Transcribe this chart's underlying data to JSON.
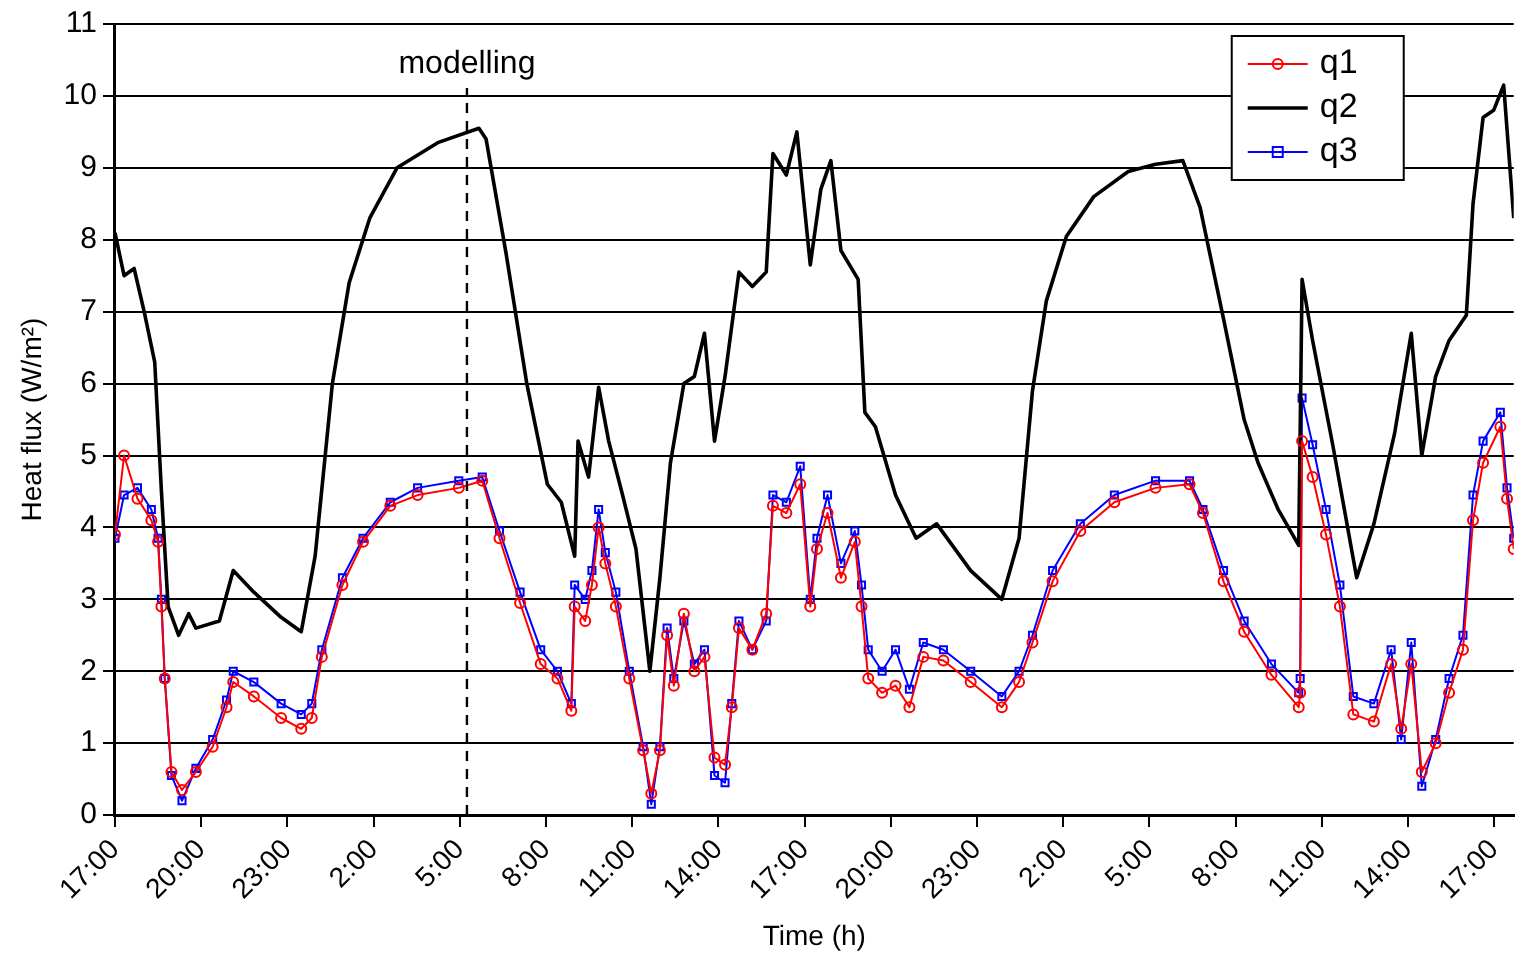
{
  "chart_data": {
    "type": "line",
    "xlabel": "Time (h)",
    "ylabel": "Heat flux (W/m²)",
    "xlim": [
      "2000-01-01T17:00",
      "2000-01-03T17:41"
    ],
    "xticks": [
      {
        "value": "2000-01-01T17:00",
        "label": "17:00"
      },
      {
        "value": "2000-01-01T20:00",
        "label": "20:00"
      },
      {
        "value": "2000-01-01T23:00",
        "label": "23:00"
      },
      {
        "value": "2000-01-02T02:00",
        "label": "2:00"
      },
      {
        "value": "2000-01-02T05:00",
        "label": "5:00"
      },
      {
        "value": "2000-01-02T08:00",
        "label": "8:00"
      },
      {
        "value": "2000-01-02T11:00",
        "label": "11:00"
      },
      {
        "value": "2000-01-02T14:00",
        "label": "14:00"
      },
      {
        "value": "2000-01-02T17:00",
        "label": "17:00"
      },
      {
        "value": "2000-01-02T20:00",
        "label": "20:00"
      },
      {
        "value": "2000-01-02T23:00",
        "label": "23:00"
      },
      {
        "value": "2000-01-03T02:00",
        "label": "2:00"
      },
      {
        "value": "2000-01-03T05:00",
        "label": "5:00"
      },
      {
        "value": "2000-01-03T08:00",
        "label": "8:00"
      },
      {
        "value": "2000-01-03T11:00",
        "label": "11:00"
      },
      {
        "value": "2000-01-03T14:00",
        "label": "14:00"
      },
      {
        "value": "2000-01-03T17:00",
        "label": "17:00"
      }
    ],
    "ylim": [
      0,
      11
    ],
    "yticks": [
      0,
      1,
      2,
      3,
      4,
      5,
      6,
      7,
      8,
      9,
      10,
      11
    ],
    "grid": "y",
    "legend": "top right",
    "ref_lines": [
      {
        "axis": "x",
        "value": "2000-01-02T05:15",
        "label": "modelling",
        "color": "#000000",
        "line_style": "dashed"
      }
    ],
    "series": [
      {
        "name": "q1",
        "color": "#ff0000",
        "marker": "circle",
        "x": [
          "2000-01-01T17:00",
          "2000-01-01T17:19",
          "2000-01-01T17:47",
          "2000-01-01T18:16",
          "2000-01-01T18:30",
          "2000-01-01T18:37",
          "2000-01-01T18:44",
          "2000-01-01T18:58",
          "2000-01-01T19:20",
          "2000-01-01T19:49",
          "2000-01-01T20:24",
          "2000-01-01T20:53",
          "2000-01-01T21:07",
          "2000-01-01T21:50",
          "2000-01-01T22:47",
          "2000-01-01T23:29",
          "2000-01-01T23:51",
          "2000-01-02T00:12",
          "2000-01-02T00:55",
          "2000-01-02T01:38",
          "2000-01-02T02:35",
          "2000-01-02T03:32",
          "2000-01-02T04:58",
          "2000-01-02T05:47",
          "2000-01-02T06:23",
          "2000-01-02T07:06",
          "2000-01-02T07:49",
          "2000-01-02T08:24",
          "2000-01-02T08:53",
          "2000-01-02T09:00",
          "2000-01-02T09:22",
          "2000-01-02T09:36",
          "2000-01-02T09:50",
          "2000-01-02T10:04",
          "2000-01-02T10:26",
          "2000-01-02T10:54",
          "2000-01-02T11:23",
          "2000-01-02T11:40",
          "2000-01-02T11:58",
          "2000-01-02T12:13",
          "2000-01-02T12:27",
          "2000-01-02T12:48",
          "2000-01-02T13:10",
          "2000-01-02T13:31",
          "2000-01-02T13:52",
          "2000-01-02T14:14",
          "2000-01-02T14:28",
          "2000-01-02T14:43",
          "2000-01-02T15:11",
          "2000-01-02T15:40",
          "2000-01-02T15:54",
          "2000-01-02T16:22",
          "2000-01-02T16:51",
          "2000-01-02T17:12",
          "2000-01-02T17:26",
          "2000-01-02T17:48",
          "2000-01-02T18:16",
          "2000-01-02T18:45",
          "2000-01-02T18:59",
          "2000-01-02T19:13",
          "2000-01-02T19:42",
          "2000-01-02T20:10",
          "2000-01-02T20:39",
          "2000-01-02T21:08",
          "2000-01-02T21:50",
          "2000-01-02T22:47",
          "2000-01-02T23:52",
          "2000-01-03T00:28",
          "2000-01-03T00:56",
          "2000-01-03T01:38",
          "2000-01-03T02:36",
          "2000-01-03T03:47",
          "2000-01-03T05:13",
          "2000-01-03T06:24",
          "2000-01-03T06:52",
          "2000-01-03T07:35",
          "2000-01-03T08:18",
          "2000-01-03T09:15",
          "2000-01-03T10:12",
          "2000-01-03T10:15",
          "2000-01-03T10:19",
          "2000-01-03T10:41",
          "2000-01-03T11:09",
          "2000-01-03T11:38",
          "2000-01-03T12:06",
          "2000-01-03T12:49",
          "2000-01-03T13:25",
          "2000-01-03T13:46",
          "2000-01-03T14:07",
          "2000-01-03T14:29",
          "2000-01-03T14:58",
          "2000-01-03T15:26",
          "2000-01-03T15:55",
          "2000-01-03T16:16",
          "2000-01-03T16:37",
          "2000-01-03T17:13",
          "2000-01-03T17:27",
          "2000-01-03T17:41"
        ],
        "values": [
          3.9,
          5.0,
          4.4,
          4.1,
          3.8,
          2.9,
          1.9,
          0.6,
          0.35,
          0.6,
          0.95,
          1.5,
          1.85,
          1.65,
          1.35,
          1.2,
          1.35,
          2.2,
          3.2,
          3.8,
          4.3,
          4.45,
          4.55,
          4.65,
          3.85,
          2.95,
          2.1,
          1.9,
          1.45,
          2.9,
          2.7,
          3.2,
          4.0,
          3.5,
          2.9,
          1.9,
          0.9,
          0.3,
          0.9,
          2.5,
          1.8,
          2.8,
          2.0,
          2.2,
          0.8,
          0.7,
          1.5,
          2.6,
          2.3,
          2.8,
          4.3,
          4.2,
          4.6,
          2.9,
          3.7,
          4.2,
          3.3,
          3.8,
          2.9,
          1.9,
          1.7,
          1.8,
          1.5,
          2.2,
          2.15,
          1.85,
          1.5,
          1.85,
          2.4,
          3.25,
          3.95,
          4.35,
          4.55,
          4.6,
          4.2,
          3.25,
          2.55,
          1.95,
          1.5,
          1.7,
          5.2,
          4.7,
          3.9,
          2.9,
          1.4,
          1.3,
          2.1,
          1.2,
          2.1,
          0.6,
          1.0,
          1.7,
          2.3,
          4.1,
          4.9,
          5.4,
          4.4,
          3.7
        ]
      },
      {
        "name": "q2",
        "color": "#000000",
        "marker": "none",
        "x": [
          "2000-01-01T17:00",
          "2000-01-01T17:19",
          "2000-01-01T17:40",
          "2000-01-01T18:01",
          "2000-01-01T18:23",
          "2000-01-01T18:37",
          "2000-01-01T18:51",
          "2000-01-01T19:13",
          "2000-01-01T19:34",
          "2000-01-01T19:49",
          "2000-01-01T20:38",
          "2000-01-01T21:07",
          "2000-01-01T21:50",
          "2000-01-01T22:47",
          "2000-01-01T23:29",
          "2000-01-01T23:58",
          "2000-01-02T00:34",
          "2000-01-02T01:09",
          "2000-01-02T01:52",
          "2000-01-02T02:49",
          "2000-01-02T04:14",
          "2000-01-02T05:40",
          "2000-01-02T05:55",
          "2000-01-02T06:37",
          "2000-01-02T07:20",
          "2000-01-02T08:03",
          "2000-01-02T08:32",
          "2000-01-02T09:00",
          "2000-01-02T09:07",
          "2000-01-02T09:29",
          "2000-01-02T09:50",
          "2000-01-02T10:11",
          "2000-01-02T10:40",
          "2000-01-02T11:08",
          "2000-01-02T11:37",
          "2000-01-02T11:58",
          "2000-01-02T12:20",
          "2000-01-02T12:48",
          "2000-01-02T13:10",
          "2000-01-02T13:31",
          "2000-01-02T13:52",
          "2000-01-02T14:14",
          "2000-01-02T14:43",
          "2000-01-02T15:11",
          "2000-01-02T15:40",
          "2000-01-02T15:54",
          "2000-01-02T16:22",
          "2000-01-02T16:44",
          "2000-01-02T17:12",
          "2000-01-02T17:34",
          "2000-01-02T17:55",
          "2000-01-02T18:16",
          "2000-01-02T18:52",
          "2000-01-02T19:06",
          "2000-01-02T19:28",
          "2000-01-02T20:10",
          "2000-01-02T20:53",
          "2000-01-02T21:36",
          "2000-01-02T22:47",
          "2000-01-02T23:52",
          "2000-01-03T00:28",
          "2000-01-03T00:56",
          "2000-01-03T01:25",
          "2000-01-03T02:07",
          "2000-01-03T03:04",
          "2000-01-03T04:16",
          "2000-01-03T05:13",
          "2000-01-03T06:10",
          "2000-01-03T06:46",
          "2000-01-03T07:35",
          "2000-01-03T08:18",
          "2000-01-03T08:47",
          "2000-01-03T09:29",
          "2000-01-03T10:12",
          "2000-01-03T10:19",
          "2000-01-03T10:41",
          "2000-01-03T11:23",
          "2000-01-03T12:13",
          "2000-01-03T12:49",
          "2000-01-03T13:32",
          "2000-01-03T14:07",
          "2000-01-03T14:29",
          "2000-01-03T14:58",
          "2000-01-03T15:26",
          "2000-01-03T16:02",
          "2000-01-03T16:16",
          "2000-01-03T16:37",
          "2000-01-03T16:59",
          "2000-01-03T17:20",
          "2000-01-03T17:41"
        ],
        "values": [
          8.1,
          7.5,
          7.6,
          7.0,
          6.3,
          4.5,
          2.9,
          2.5,
          2.8,
          2.6,
          2.7,
          3.4,
          3.1,
          2.75,
          2.55,
          3.6,
          6.0,
          7.4,
          8.3,
          9.0,
          9.35,
          9.55,
          9.4,
          7.8,
          6.0,
          4.6,
          4.35,
          3.6,
          5.2,
          4.7,
          5.95,
          5.2,
          4.45,
          3.7,
          2.0,
          3.3,
          4.9,
          6.0,
          6.1,
          6.7,
          5.2,
          6.1,
          7.55,
          7.35,
          7.55,
          9.2,
          8.9,
          9.5,
          7.65,
          8.7,
          9.1,
          7.85,
          7.45,
          5.6,
          5.4,
          4.45,
          3.85,
          4.05,
          3.4,
          3.0,
          3.85,
          5.9,
          7.15,
          8.05,
          8.6,
          8.95,
          9.05,
          9.1,
          8.45,
          6.9,
          5.5,
          4.9,
          4.25,
          3.75,
          7.45,
          6.6,
          5.15,
          3.3,
          4.05,
          5.3,
          6.7,
          5.0,
          6.1,
          6.6,
          6.95,
          8.5,
          9.7,
          9.8,
          10.15,
          8.3
        ]
      },
      {
        "name": "q3",
        "color": "#0000ff",
        "marker": "square",
        "x": [
          "2000-01-01T17:00",
          "2000-01-01T17:19",
          "2000-01-01T17:47",
          "2000-01-01T18:16",
          "2000-01-01T18:30",
          "2000-01-01T18:37",
          "2000-01-01T18:44",
          "2000-01-01T18:58",
          "2000-01-01T19:20",
          "2000-01-01T19:49",
          "2000-01-01T20:24",
          "2000-01-01T20:53",
          "2000-01-01T21:07",
          "2000-01-01T21:50",
          "2000-01-01T22:47",
          "2000-01-01T23:29",
          "2000-01-01T23:51",
          "2000-01-02T00:12",
          "2000-01-02T00:55",
          "2000-01-02T01:38",
          "2000-01-02T02:35",
          "2000-01-02T03:32",
          "2000-01-02T04:58",
          "2000-01-02T05:47",
          "2000-01-02T06:23",
          "2000-01-02T07:06",
          "2000-01-02T07:49",
          "2000-01-02T08:24",
          "2000-01-02T08:53",
          "2000-01-02T09:00",
          "2000-01-02T09:22",
          "2000-01-02T09:36",
          "2000-01-02T09:50",
          "2000-01-02T10:04",
          "2000-01-02T10:26",
          "2000-01-02T10:54",
          "2000-01-02T11:23",
          "2000-01-02T11:40",
          "2000-01-02T11:58",
          "2000-01-02T12:13",
          "2000-01-02T12:27",
          "2000-01-02T12:48",
          "2000-01-02T13:10",
          "2000-01-02T13:31",
          "2000-01-02T13:52",
          "2000-01-02T14:14",
          "2000-01-02T14:28",
          "2000-01-02T14:43",
          "2000-01-02T15:11",
          "2000-01-02T15:40",
          "2000-01-02T15:54",
          "2000-01-02T16:22",
          "2000-01-02T16:51",
          "2000-01-02T17:12",
          "2000-01-02T17:26",
          "2000-01-02T17:48",
          "2000-01-02T18:16",
          "2000-01-02T18:45",
          "2000-01-02T18:59",
          "2000-01-02T19:13",
          "2000-01-02T19:42",
          "2000-01-02T20:10",
          "2000-01-02T20:39",
          "2000-01-02T21:08",
          "2000-01-02T21:50",
          "2000-01-02T22:47",
          "2000-01-02T23:52",
          "2000-01-03T00:28",
          "2000-01-03T00:56",
          "2000-01-03T01:38",
          "2000-01-03T02:36",
          "2000-01-03T03:47",
          "2000-01-03T05:13",
          "2000-01-03T06:24",
          "2000-01-03T06:52",
          "2000-01-03T07:35",
          "2000-01-03T08:18",
          "2000-01-03T09:15",
          "2000-01-03T10:12",
          "2000-01-03T10:15",
          "2000-01-03T10:19",
          "2000-01-03T10:41",
          "2000-01-03T11:09",
          "2000-01-03T11:38",
          "2000-01-03T12:06",
          "2000-01-03T12:49",
          "2000-01-03T13:25",
          "2000-01-03T13:46",
          "2000-01-03T14:07",
          "2000-01-03T14:29",
          "2000-01-03T14:58",
          "2000-01-03T15:26",
          "2000-01-03T15:55",
          "2000-01-03T16:16",
          "2000-01-03T16:37",
          "2000-01-03T17:13",
          "2000-01-03T17:27",
          "2000-01-03T17:41"
        ],
        "values": [
          3.85,
          4.45,
          4.55,
          4.25,
          3.85,
          3.0,
          1.9,
          0.55,
          0.2,
          0.65,
          1.05,
          1.6,
          2.0,
          1.85,
          1.55,
          1.4,
          1.55,
          2.3,
          3.3,
          3.85,
          4.35,
          4.55,
          4.65,
          4.7,
          3.95,
          3.1,
          2.3,
          2.0,
          1.55,
          3.2,
          3.0,
          3.4,
          4.25,
          3.65,
          3.1,
          2.0,
          0.95,
          0.15,
          0.95,
          2.6,
          1.9,
          2.7,
          2.1,
          2.3,
          0.55,
          0.45,
          1.55,
          2.7,
          2.3,
          2.7,
          4.45,
          4.35,
          4.85,
          3.0,
          3.85,
          4.45,
          3.5,
          3.95,
          3.2,
          2.3,
          2.0,
          2.3,
          1.75,
          2.4,
          2.3,
          2.0,
          1.65,
          2.0,
          2.5,
          3.4,
          4.05,
          4.45,
          4.65,
          4.65,
          4.25,
          3.4,
          2.7,
          2.1,
          1.7,
          1.9,
          5.8,
          5.15,
          4.25,
          3.2,
          1.65,
          1.55,
          2.3,
          1.05,
          2.4,
          0.4,
          1.05,
          1.9,
          2.5,
          4.45,
          5.2,
          5.6,
          4.55,
          3.85
        ]
      }
    ]
  }
}
